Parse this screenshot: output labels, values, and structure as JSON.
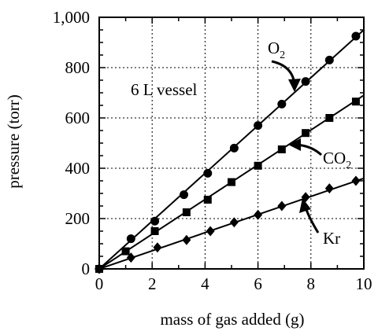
{
  "chart_data": {
    "type": "scatter",
    "xlabel": "mass of gas added (g)",
    "ylabel": "pressure (torr)",
    "xlim": [
      0,
      10
    ],
    "ylim": [
      0,
      1000
    ],
    "x_ticks": [
      0,
      2,
      4,
      6,
      8,
      10
    ],
    "y_ticks": [
      0,
      200,
      400,
      600,
      800,
      1000
    ],
    "x_tick_labels": [
      "0",
      "2",
      "4",
      "6",
      "8",
      "10"
    ],
    "y_tick_labels": [
      "0",
      "200",
      "400",
      "600",
      "800",
      "1,000"
    ],
    "grid": true,
    "annotation_text": "6 L vessel",
    "series": [
      {
        "name": "O2",
        "label_base": "O",
        "label_sub": "2",
        "marker": "circle",
        "fit_slope": 95,
        "x": [
          0,
          1.2,
          2.1,
          3.2,
          4.1,
          5.1,
          6.0,
          6.9,
          7.8,
          8.7,
          9.7
        ],
        "y": [
          0,
          120,
          190,
          295,
          380,
          480,
          570,
          655,
          745,
          830,
          925
        ]
      },
      {
        "name": "CO2",
        "label_base": "CO",
        "label_sub": "2",
        "marker": "square",
        "fit_slope": 69,
        "x": [
          0,
          1.0,
          2.1,
          3.3,
          4.1,
          5.0,
          6.0,
          6.9,
          7.8,
          8.7,
          9.7
        ],
        "y": [
          0,
          70,
          150,
          225,
          275,
          345,
          410,
          475,
          540,
          600,
          665
        ]
      },
      {
        "name": "Kr",
        "label_base": "Kr",
        "label_sub": "",
        "marker": "diamond",
        "fit_slope": 36,
        "x": [
          0,
          1.2,
          2.2,
          3.3,
          4.2,
          5.1,
          6.0,
          6.9,
          7.8,
          8.7,
          9.7
        ],
        "y": [
          0,
          45,
          85,
          115,
          150,
          185,
          215,
          250,
          285,
          320,
          350
        ]
      }
    ]
  }
}
